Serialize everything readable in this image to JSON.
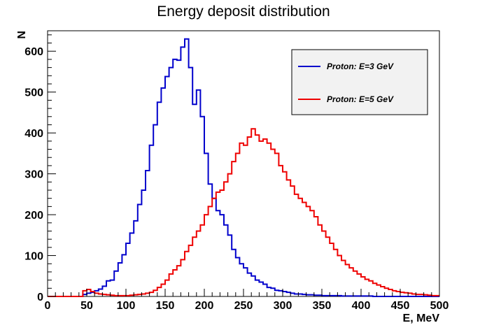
{
  "chart_data": {
    "type": "histogram",
    "title": "Energy deposit distribution",
    "xlabel": "E, MeV",
    "ylabel": "N",
    "xlim": [
      0,
      500
    ],
    "ylim": [
      0,
      650
    ],
    "bin_width": 5,
    "bin_start": 0,
    "x_ticks": [
      0,
      50,
      100,
      150,
      200,
      250,
      300,
      350,
      400,
      450,
      500
    ],
    "y_ticks": [
      0,
      100,
      200,
      300,
      400,
      500,
      600
    ],
    "grid": false,
    "legend_position": "top-right",
    "series": [
      {
        "name": "Proton: E=3 GeV",
        "color": "#0000cc",
        "values": [
          0,
          0,
          0,
          0,
          0,
          0,
          0,
          0,
          0,
          5,
          8,
          10,
          14,
          18,
          25,
          38,
          40,
          62,
          82,
          102,
          130,
          155,
          185,
          225,
          260,
          308,
          370,
          420,
          475,
          510,
          538,
          560,
          580,
          578,
          610,
          630,
          560,
          470,
          505,
          440,
          350,
          275,
          240,
          210,
          200,
          175,
          150,
          115,
          95,
          80,
          70,
          57,
          50,
          40,
          35,
          30,
          22,
          20,
          15,
          14,
          12,
          10,
          8,
          6,
          6,
          5,
          4,
          4,
          3,
          3,
          2,
          2,
          2,
          2,
          2,
          1,
          1,
          1,
          1,
          1,
          1,
          1,
          1,
          0,
          0,
          0,
          0,
          0,
          0,
          0,
          0,
          0,
          0,
          0,
          0,
          0,
          0,
          0,
          0,
          0
        ]
      },
      {
        "name": "Proton: E=5 GeV",
        "color": "#ee0000",
        "values": [
          0,
          0,
          0,
          0,
          0,
          0,
          0,
          0,
          0,
          14,
          17,
          12,
          8,
          6,
          5,
          4,
          3,
          2,
          2,
          2,
          2,
          3,
          4,
          5,
          6,
          8,
          10,
          15,
          22,
          30,
          40,
          55,
          65,
          75,
          90,
          110,
          125,
          145,
          160,
          175,
          200,
          220,
          240,
          255,
          260,
          280,
          300,
          330,
          350,
          375,
          370,
          390,
          410,
          395,
          380,
          385,
          375,
          360,
          350,
          320,
          305,
          285,
          270,
          250,
          240,
          230,
          220,
          210,
          195,
          175,
          160,
          145,
          130,
          115,
          100,
          88,
          78,
          70,
          62,
          55,
          48,
          42,
          38,
          32,
          28,
          24,
          20,
          17,
          14,
          12,
          10,
          9,
          8,
          6,
          5,
          5,
          4,
          3,
          2,
          2
        ]
      }
    ]
  }
}
